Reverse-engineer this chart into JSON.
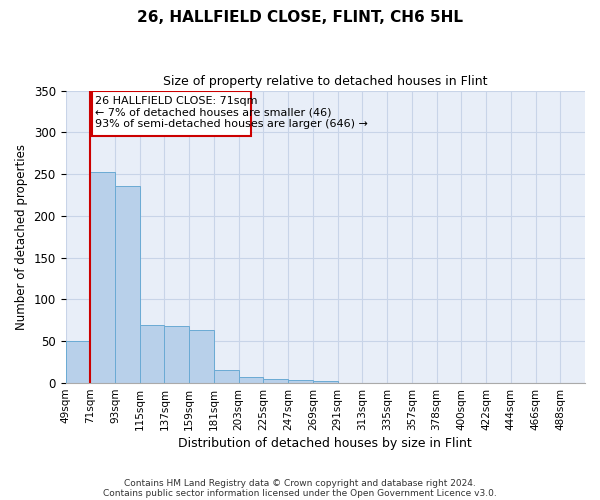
{
  "title": "26, HALLFIELD CLOSE, FLINT, CH6 5HL",
  "subtitle": "Size of property relative to detached houses in Flint",
  "xlabel": "Distribution of detached houses by size in Flint",
  "ylabel": "Number of detached properties",
  "bin_labels": [
    "49sqm",
    "71sqm",
    "93sqm",
    "115sqm",
    "137sqm",
    "159sqm",
    "181sqm",
    "203sqm",
    "225sqm",
    "247sqm",
    "269sqm",
    "291sqm",
    "313sqm",
    "335sqm",
    "357sqm",
    "378sqm",
    "400sqm",
    "422sqm",
    "444sqm",
    "466sqm",
    "488sqm"
  ],
  "bar_values": [
    50,
    252,
    236,
    69,
    68,
    64,
    16,
    7,
    5,
    4,
    3,
    0,
    0,
    0,
    0,
    0,
    0,
    0,
    0,
    0,
    0
  ],
  "bar_color": "#b8d0ea",
  "bar_edge_color": "#6aaad4",
  "property_line_x": 1,
  "property_line_label": "26 HALLFIELD CLOSE: 71sqm",
  "annotation_line1": "← 7% of detached houses are smaller (46)",
  "annotation_line2": "93% of semi-detached houses are larger (646) →",
  "box_color": "#cc0000",
  "ylim": [
    0,
    350
  ],
  "yticks": [
    0,
    50,
    100,
    150,
    200,
    250,
    300,
    350
  ],
  "footer1": "Contains HM Land Registry data © Crown copyright and database right 2024.",
  "footer2": "Contains public sector information licensed under the Open Government Licence v3.0.",
  "background_color": "#ffffff",
  "grid_color": "#c8d4e8",
  "plot_bg_color": "#e8eef8"
}
